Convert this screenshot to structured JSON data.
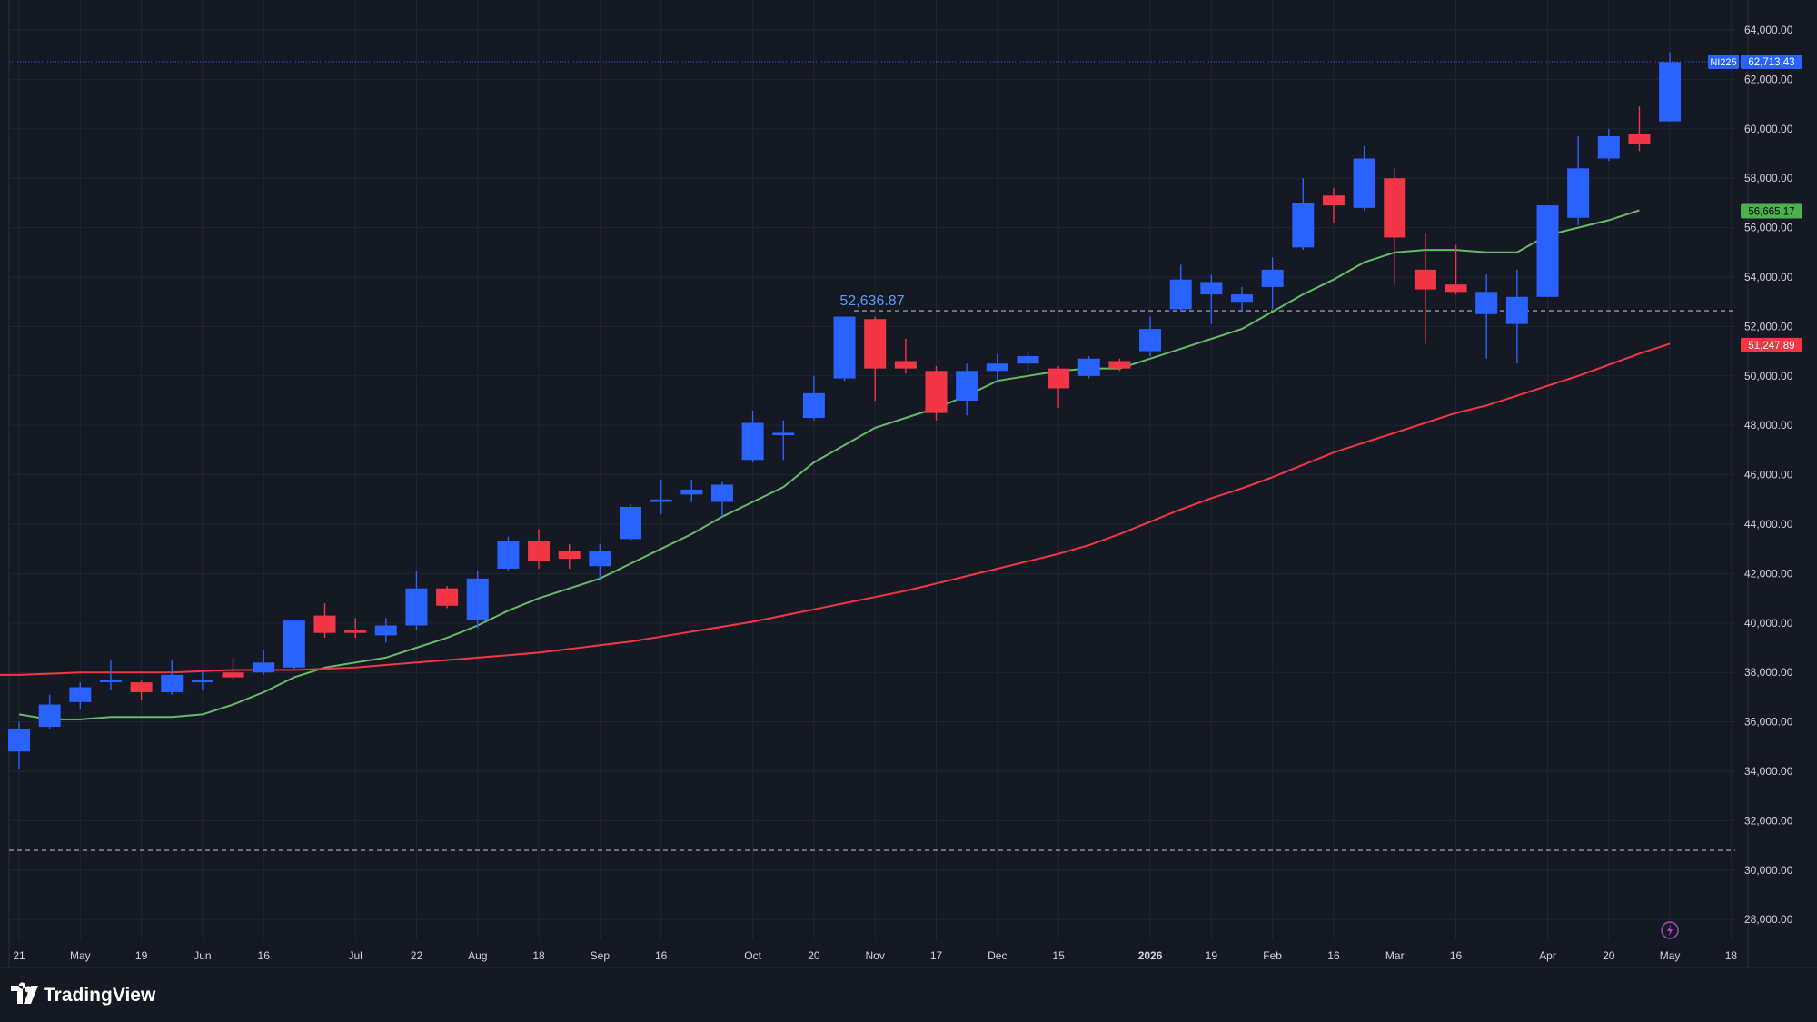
{
  "symbol": "NI225",
  "last_price_label": "62,713.43",
  "ma_fast_label": "56,665.17",
  "ma_slow_label": "51,247.89",
  "highlight_label": "52,636.87",
  "brand": "TradingView",
  "colors": {
    "background": "#151924",
    "up": "#2962ff",
    "down": "#f23645",
    "ma_fast": "#66bb6a",
    "ma_slow": "#f23645",
    "grid": "#222632",
    "text": "#b2b5be"
  },
  "chart_data": {
    "type": "candlestick",
    "timeframe": "weekly",
    "y_ticks": [
      "64,000.00",
      "62,000.00",
      "60,000.00",
      "58,000.00",
      "56,000.00",
      "54,000.00",
      "52,000.00",
      "50,000.00",
      "48,000.00",
      "46,000.00",
      "44,000.00",
      "42,000.00",
      "40,000.00",
      "38,000.00",
      "36,000.00",
      "34,000.00",
      "32,000.00",
      "30,000.00",
      "28,000.00"
    ],
    "y_tick_values": [
      64000,
      62000,
      60000,
      58000,
      56000,
      54000,
      52000,
      50000,
      48000,
      46000,
      44000,
      42000,
      40000,
      38000,
      36000,
      34000,
      32000,
      30000,
      28000
    ],
    "ylim": [
      27500,
      65000
    ],
    "x_ticks": [
      {
        "label": "21",
        "bar": 0
      },
      {
        "label": "May",
        "bar": 2
      },
      {
        "label": "19",
        "bar": 4
      },
      {
        "label": "Jun",
        "bar": 6
      },
      {
        "label": "16",
        "bar": 8
      },
      {
        "label": "Jul",
        "bar": 11
      },
      {
        "label": "22",
        "bar": 13
      },
      {
        "label": "Aug",
        "bar": 15
      },
      {
        "label": "18",
        "bar": 17
      },
      {
        "label": "Sep",
        "bar": 19
      },
      {
        "label": "16",
        "bar": 21
      },
      {
        "label": "Oct",
        "bar": 24
      },
      {
        "label": "20",
        "bar": 26
      },
      {
        "label": "Nov",
        "bar": 28
      },
      {
        "label": "17",
        "bar": 30
      },
      {
        "label": "Dec",
        "bar": 32
      },
      {
        "label": "15",
        "bar": 34
      },
      {
        "label": "2026",
        "bar": 37
      },
      {
        "label": "19",
        "bar": 39
      },
      {
        "label": "Feb",
        "bar": 41
      },
      {
        "label": "16",
        "bar": 43
      },
      {
        "label": "Mar",
        "bar": 45
      },
      {
        "label": "16",
        "bar": 47
      },
      {
        "label": "Apr",
        "bar": 50
      },
      {
        "label": "20",
        "bar": 52
      },
      {
        "label": "May",
        "bar": 54
      },
      {
        "label": "18",
        "bar": 56
      }
    ],
    "candles": [
      {
        "o": 34800,
        "h": 36000,
        "l": 34100,
        "c": 35700
      },
      {
        "o": 35800,
        "h": 37100,
        "l": 35700,
        "c": 36700
      },
      {
        "o": 36800,
        "h": 37600,
        "l": 36500,
        "c": 37400
      },
      {
        "o": 37600,
        "h": 38500,
        "l": 37300,
        "c": 37700
      },
      {
        "o": 37600,
        "h": 37700,
        "l": 36900,
        "c": 37200
      },
      {
        "o": 37200,
        "h": 38500,
        "l": 37100,
        "c": 37900
      },
      {
        "o": 37600,
        "h": 38000,
        "l": 37300,
        "c": 37700
      },
      {
        "o": 38000,
        "h": 38600,
        "l": 37700,
        "c": 37800
      },
      {
        "o": 38000,
        "h": 38900,
        "l": 37900,
        "c": 38400
      },
      {
        "o": 38200,
        "h": 40100,
        "l": 38100,
        "c": 40100
      },
      {
        "o": 40300,
        "h": 40800,
        "l": 39400,
        "c": 39600
      },
      {
        "o": 39700,
        "h": 40200,
        "l": 39400,
        "c": 39600
      },
      {
        "o": 39500,
        "h": 40200,
        "l": 39200,
        "c": 39900
      },
      {
        "o": 39900,
        "h": 42100,
        "l": 39700,
        "c": 41400
      },
      {
        "o": 41400,
        "h": 41500,
        "l": 40600,
        "c": 40700
      },
      {
        "o": 40100,
        "h": 42100,
        "l": 39800,
        "c": 41800
      },
      {
        "o": 42200,
        "h": 43500,
        "l": 42100,
        "c": 43300
      },
      {
        "o": 43300,
        "h": 43800,
        "l": 42200,
        "c": 42500
      },
      {
        "o": 42900,
        "h": 43200,
        "l": 42200,
        "c": 42600
      },
      {
        "o": 42300,
        "h": 43200,
        "l": 41800,
        "c": 42900
      },
      {
        "o": 43400,
        "h": 44800,
        "l": 43300,
        "c": 44700
      },
      {
        "o": 44900,
        "h": 45800,
        "l": 44400,
        "c": 45000
      },
      {
        "o": 45200,
        "h": 45800,
        "l": 44900,
        "c": 45400
      },
      {
        "o": 44900,
        "h": 45700,
        "l": 44300,
        "c": 45600
      },
      {
        "o": 46600,
        "h": 48600,
        "l": 46500,
        "c": 48100
      },
      {
        "o": 47600,
        "h": 48200,
        "l": 46600,
        "c": 47700
      },
      {
        "o": 48300,
        "h": 50000,
        "l": 48200,
        "c": 49300
      },
      {
        "o": 49900,
        "h": 52400,
        "l": 49800,
        "c": 52400
      },
      {
        "o": 52300,
        "h": 52400,
        "l": 49000,
        "c": 50300
      },
      {
        "o": 50600,
        "h": 51500,
        "l": 50100,
        "c": 50300
      },
      {
        "o": 50200,
        "h": 50400,
        "l": 48200,
        "c": 48500
      },
      {
        "o": 49000,
        "h": 50500,
        "l": 48400,
        "c": 50200
      },
      {
        "o": 50200,
        "h": 50900,
        "l": 49700,
        "c": 50500
      },
      {
        "o": 50500,
        "h": 51000,
        "l": 50200,
        "c": 50800
      },
      {
        "o": 50300,
        "h": 50400,
        "l": 48700,
        "c": 49500
      },
      {
        "o": 50000,
        "h": 50800,
        "l": 49900,
        "c": 50700
      },
      {
        "o": 50600,
        "h": 50700,
        "l": 50200,
        "c": 50300
      },
      {
        "o": 51000,
        "h": 52400,
        "l": 50800,
        "c": 51900
      },
      {
        "o": 52700,
        "h": 54500,
        "l": 52600,
        "c": 53900
      },
      {
        "o": 53300,
        "h": 54100,
        "l": 52100,
        "c": 53800
      },
      {
        "o": 53000,
        "h": 53600,
        "l": 52600,
        "c": 53300
      },
      {
        "o": 53600,
        "h": 54800,
        "l": 52700,
        "c": 54300
      },
      {
        "o": 55200,
        "h": 58000,
        "l": 55100,
        "c": 57000
      },
      {
        "o": 57300,
        "h": 57600,
        "l": 56200,
        "c": 56900
      },
      {
        "o": 56800,
        "h": 59300,
        "l": 56700,
        "c": 58800
      },
      {
        "o": 58000,
        "h": 58400,
        "l": 53700,
        "c": 55600
      },
      {
        "o": 54300,
        "h": 55800,
        "l": 51300,
        "c": 53500
      },
      {
        "o": 53700,
        "h": 55300,
        "l": 53300,
        "c": 53400
      },
      {
        "o": 52500,
        "h": 54100,
        "l": 50700,
        "c": 53400
      },
      {
        "o": 52100,
        "h": 54300,
        "l": 50500,
        "c": 53200
      },
      {
        "o": 53200,
        "h": 56900,
        "l": 53200,
        "c": 56900
      },
      {
        "o": 56400,
        "h": 59700,
        "l": 56100,
        "c": 58400
      },
      {
        "o": 58800,
        "h": 60000,
        "l": 58700,
        "c": 59700
      },
      {
        "o": 59800,
        "h": 60900,
        "l": 59100,
        "c": 59400
      },
      {
        "o": 60300,
        "h": 63100,
        "l": 60300,
        "c": 62700
      }
    ],
    "ma_fast": [
      36300,
      36100,
      36100,
      36200,
      36200,
      36200,
      36300,
      36700,
      37200,
      37800,
      38200,
      38400,
      38600,
      39000,
      39400,
      39900,
      40500,
      41000,
      41400,
      41800,
      42400,
      43000,
      43600,
      44300,
      44900,
      45500,
      46500,
      47200,
      47900,
      48300,
      48700,
      49200,
      49800,
      50000,
      50200,
      50300,
      50300,
      50700,
      51100,
      51500,
      51900,
      52600,
      53300,
      53900,
      54600,
      55000,
      55100,
      55100,
      55000,
      55000,
      55700,
      56000,
      56300,
      56700
    ],
    "ma_slow": [
      37900,
      37900,
      37950,
      38000,
      38000,
      38000,
      38000,
      38050,
      38100,
      38100,
      38100,
      38150,
      38200,
      38300,
      38400,
      38500,
      38600,
      38700,
      38800,
      38950,
      39100,
      39250,
      39450,
      39650,
      39850,
      40050,
      40300,
      40550,
      40800,
      41050,
      41300,
      41600,
      41900,
      42200,
      42500,
      42800,
      43150,
      43600,
      44100,
      44600,
      45050,
      45450,
      45900,
      46400,
      46900,
      47300,
      47700,
      48100,
      48500,
      48800,
      49200,
      49600,
      50000,
      50450,
      50900,
      51300
    ],
    "ma_fast_start_bar": 0,
    "ma_slow_start_bar": -1,
    "reference_lines": [
      52636.87,
      30800,
      62713.43
    ]
  }
}
